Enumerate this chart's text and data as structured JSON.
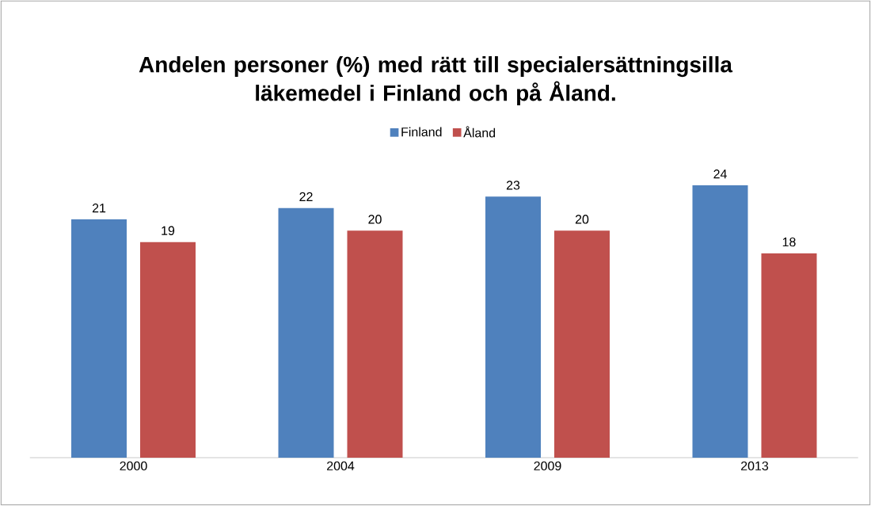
{
  "chart_data": {
    "type": "bar",
    "title": "Andelen personer (%) med rätt till specialersättningsilla läkemedel i Finland och på Åland.",
    "categories": [
      "2000",
      "2004",
      "2009",
      "2013"
    ],
    "series": [
      {
        "name": "Finland",
        "color": "#4f81bd",
        "values": [
          21,
          22,
          23,
          24
        ]
      },
      {
        "name": "Åland",
        "color": "#c0504d",
        "values": [
          19,
          20,
          20,
          18
        ]
      }
    ],
    "data_labels": true,
    "legend": "top",
    "tick_labels": "x"
  }
}
